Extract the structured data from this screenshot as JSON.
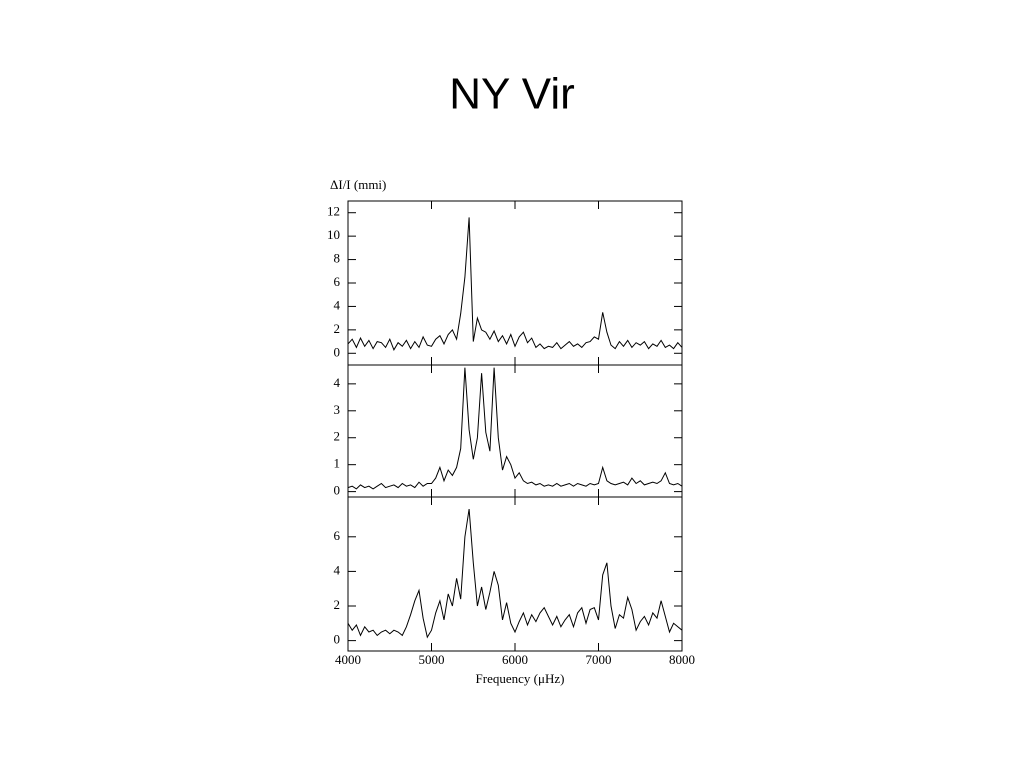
{
  "title": "NY Vir",
  "chart_data": [
    {
      "type": "line",
      "ylabel": "ΔI/I (mmi)",
      "color": "#000000",
      "xlim": [
        4000,
        8000
      ],
      "ylim": [
        -1,
        13
      ],
      "yticks": [
        0,
        2,
        4,
        6,
        8,
        10,
        12
      ],
      "x": [
        4000,
        4050,
        4100,
        4150,
        4200,
        4250,
        4300,
        4350,
        4400,
        4450,
        4500,
        4550,
        4600,
        4650,
        4700,
        4750,
        4800,
        4850,
        4900,
        4950,
        5000,
        5050,
        5100,
        5150,
        5200,
        5250,
        5300,
        5350,
        5400,
        5450,
        5500,
        5550,
        5600,
        5650,
        5700,
        5750,
        5800,
        5850,
        5900,
        5950,
        6000,
        6050,
        6100,
        6150,
        6200,
        6250,
        6300,
        6350,
        6400,
        6450,
        6500,
        6550,
        6600,
        6650,
        6700,
        6750,
        6800,
        6850,
        6900,
        6950,
        7000,
        7050,
        7100,
        7150,
        7200,
        7250,
        7300,
        7350,
        7400,
        7450,
        7500,
        7550,
        7600,
        7650,
        7700,
        7750,
        7800,
        7850,
        7900,
        7950,
        8000
      ],
      "values": [
        0.8,
        1.2,
        0.5,
        1.3,
        0.6,
        1.1,
        0.4,
        1.0,
        0.9,
        0.5,
        1.2,
        0.3,
        0.9,
        0.6,
        1.1,
        0.4,
        1.0,
        0.5,
        1.4,
        0.7,
        0.6,
        1.2,
        1.5,
        0.8,
        1.6,
        2.0,
        1.2,
        3.4,
        6.5,
        11.6,
        1.0,
        3.0,
        2.0,
        1.8,
        1.2,
        1.9,
        1.0,
        1.5,
        0.8,
        1.6,
        0.6,
        1.4,
        1.8,
        0.9,
        1.3,
        0.5,
        0.8,
        0.4,
        0.6,
        0.5,
        0.9,
        0.4,
        0.7,
        1.0,
        0.6,
        0.8,
        0.5,
        0.9,
        1.0,
        1.4,
        1.2,
        3.5,
        1.8,
        0.7,
        0.4,
        1.0,
        0.6,
        1.1,
        0.5,
        0.9,
        0.7,
        1.0,
        0.4,
        0.8,
        0.6,
        1.1,
        0.5,
        0.7,
        0.4,
        0.9,
        0.5
      ]
    },
    {
      "type": "line",
      "color": "#000000",
      "xlim": [
        4000,
        8000
      ],
      "ylim": [
        -0.2,
        4.7
      ],
      "yticks": [
        0,
        1,
        2,
        3,
        4
      ],
      "x": [
        4000,
        4050,
        4100,
        4150,
        4200,
        4250,
        4300,
        4350,
        4400,
        4450,
        4500,
        4550,
        4600,
        4650,
        4700,
        4750,
        4800,
        4850,
        4900,
        4950,
        5000,
        5050,
        5100,
        5150,
        5200,
        5250,
        5300,
        5350,
        5400,
        5450,
        5500,
        5550,
        5600,
        5650,
        5700,
        5750,
        5800,
        5850,
        5900,
        5950,
        6000,
        6050,
        6100,
        6150,
        6200,
        6250,
        6300,
        6350,
        6400,
        6450,
        6500,
        6550,
        6600,
        6650,
        6700,
        6750,
        6800,
        6850,
        6900,
        6950,
        7000,
        7050,
        7100,
        7150,
        7200,
        7250,
        7300,
        7350,
        7400,
        7450,
        7500,
        7550,
        7600,
        7650,
        7700,
        7750,
        7800,
        7850,
        7900,
        7950,
        8000
      ],
      "values": [
        0.15,
        0.2,
        0.1,
        0.25,
        0.15,
        0.2,
        0.1,
        0.2,
        0.3,
        0.15,
        0.2,
        0.25,
        0.15,
        0.3,
        0.2,
        0.25,
        0.15,
        0.35,
        0.2,
        0.3,
        0.3,
        0.5,
        0.9,
        0.4,
        0.8,
        0.6,
        0.9,
        1.6,
        4.6,
        2.3,
        1.2,
        2.0,
        4.4,
        2.2,
        1.5,
        4.6,
        2.0,
        0.8,
        1.3,
        1.0,
        0.5,
        0.7,
        0.4,
        0.3,
        0.35,
        0.25,
        0.3,
        0.2,
        0.25,
        0.2,
        0.3,
        0.2,
        0.25,
        0.3,
        0.2,
        0.3,
        0.25,
        0.2,
        0.3,
        0.25,
        0.3,
        0.9,
        0.4,
        0.3,
        0.25,
        0.3,
        0.35,
        0.25,
        0.5,
        0.3,
        0.4,
        0.25,
        0.3,
        0.35,
        0.3,
        0.4,
        0.7,
        0.3,
        0.25,
        0.3,
        0.2
      ]
    },
    {
      "type": "line",
      "xlabel": "Frequency (μHz)",
      "color": "#000000",
      "xlim": [
        4000,
        8000
      ],
      "xticks": [
        4000,
        5000,
        6000,
        7000,
        8000
      ],
      "ylim": [
        -0.6,
        8.3
      ],
      "yticks": [
        0,
        2,
        4,
        6
      ],
      "x": [
        4000,
        4050,
        4100,
        4150,
        4200,
        4250,
        4300,
        4350,
        4400,
        4450,
        4500,
        4550,
        4600,
        4650,
        4700,
        4750,
        4800,
        4850,
        4900,
        4950,
        5000,
        5050,
        5100,
        5150,
        5200,
        5250,
        5300,
        5350,
        5400,
        5450,
        5500,
        5550,
        5600,
        5650,
        5700,
        5750,
        5800,
        5850,
        5900,
        5950,
        6000,
        6050,
        6100,
        6150,
        6200,
        6250,
        6300,
        6350,
        6400,
        6450,
        6500,
        6550,
        6600,
        6650,
        6700,
        6750,
        6800,
        6850,
        6900,
        6950,
        7000,
        7050,
        7100,
        7150,
        7200,
        7250,
        7300,
        7350,
        7400,
        7450,
        7500,
        7550,
        7600,
        7650,
        7700,
        7750,
        7800,
        7850,
        7900,
        7950,
        8000
      ],
      "values": [
        1.0,
        0.6,
        0.9,
        0.3,
        0.8,
        0.5,
        0.6,
        0.3,
        0.5,
        0.6,
        0.4,
        0.6,
        0.5,
        0.3,
        0.8,
        1.5,
        2.3,
        2.9,
        1.3,
        0.2,
        0.6,
        1.6,
        2.3,
        1.2,
        2.7,
        2.0,
        3.6,
        2.4,
        6.0,
        7.6,
        4.5,
        2.0,
        3.1,
        1.8,
        2.8,
        4.0,
        3.2,
        1.2,
        2.2,
        1.0,
        0.5,
        1.1,
        1.6,
        0.9,
        1.5,
        1.1,
        1.6,
        1.9,
        1.4,
        0.9,
        1.4,
        0.8,
        1.2,
        1.5,
        0.8,
        1.6,
        1.9,
        1.0,
        1.8,
        1.9,
        1.2,
        3.8,
        4.5,
        2.0,
        0.7,
        1.5,
        1.3,
        2.5,
        1.8,
        0.6,
        1.1,
        1.4,
        0.9,
        1.6,
        1.3,
        2.3,
        1.4,
        0.5,
        1.0,
        0.8,
        0.6
      ]
    }
  ]
}
